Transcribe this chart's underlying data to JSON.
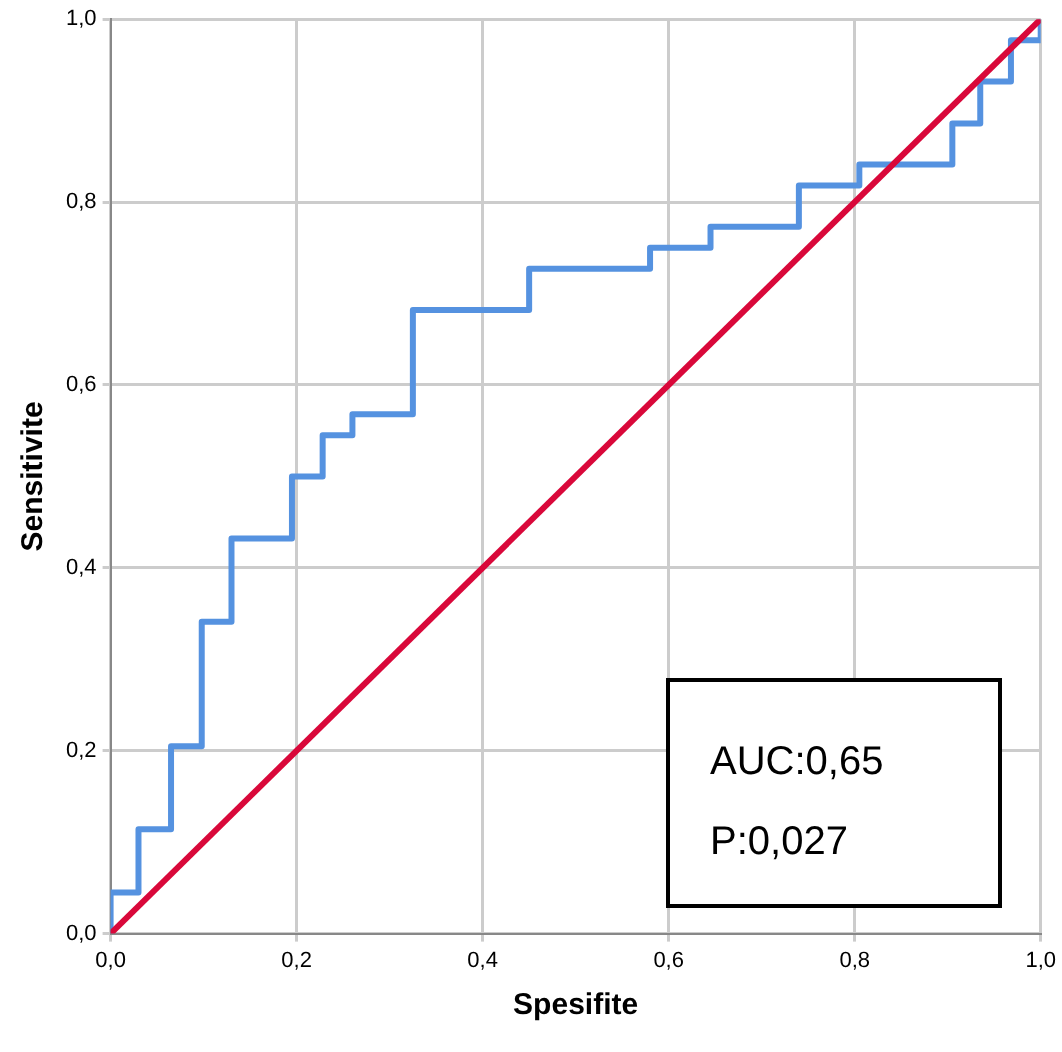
{
  "chart_data": {
    "type": "step",
    "xlabel": "Spesifite",
    "ylabel": "Sensitivite",
    "xlim": [
      0,
      1
    ],
    "ylim": [
      0,
      1
    ],
    "xticks": [
      {
        "value": 0,
        "label": "0,0"
      },
      {
        "value": 0.2,
        "label": "0,2"
      },
      {
        "value": 0.4,
        "label": "0,4"
      },
      {
        "value": 0.6,
        "label": "0,6"
      },
      {
        "value": 0.8,
        "label": "0,8"
      },
      {
        "value": 1,
        "label": "1,0"
      }
    ],
    "yticks": [
      {
        "value": 0,
        "label": "0,0"
      },
      {
        "value": 0.2,
        "label": "0,2"
      },
      {
        "value": 0.4,
        "label": "0,4"
      },
      {
        "value": 0.6,
        "label": "0,6"
      },
      {
        "value": 0.8,
        "label": "0,8"
      },
      {
        "value": 1,
        "label": "1,0"
      }
    ],
    "grid": true,
    "legend": false,
    "marker": "none",
    "series": [
      {
        "type": "step",
        "color": "#5592e0",
        "x": [
          0,
          0,
          0.03,
          0.065,
          0.098,
          0.13,
          0.195,
          0.228,
          0.26,
          0.325,
          0.45,
          0.58,
          0.645,
          0.74,
          0.805,
          0.905,
          0.935,
          0.968,
          1
        ],
        "values": [
          0,
          0.045,
          0.114,
          0.205,
          0.341,
          0.432,
          0.5,
          0.545,
          0.568,
          0.682,
          0.727,
          0.75,
          0.773,
          0.818,
          0.841,
          0.886,
          0.932,
          0.977,
          1
        ]
      },
      {
        "type": "line",
        "color": "#d9083a",
        "x": [
          0,
          1
        ],
        "values": [
          0,
          1
        ]
      }
    ],
    "annotations": [
      "AUC:0,65",
      "P:0,027"
    ]
  }
}
